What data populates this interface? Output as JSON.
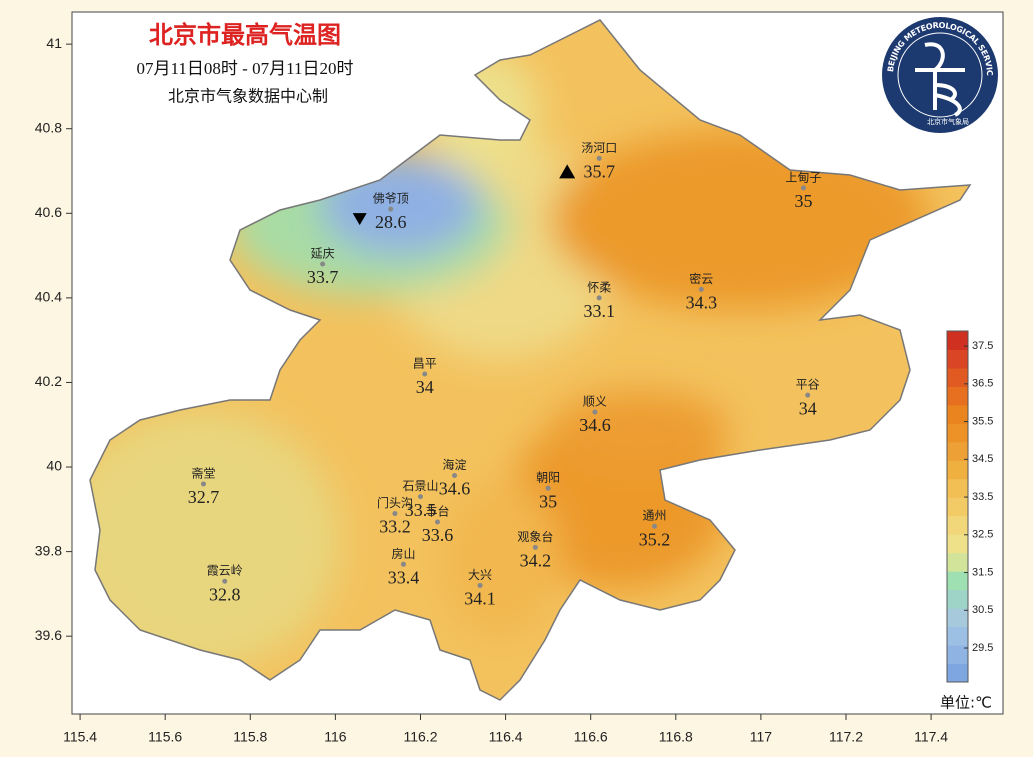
{
  "map": {
    "title": "北京市最高气温图",
    "subtitle": "07月11日08时  -  07月11日20时",
    "producer": "北京市气象数据中心制",
    "xlim": [
      115.381,
      117.569
    ],
    "ylim": [
      39.416,
      41.076
    ],
    "xticks": [
      115.4,
      115.6,
      115.8,
      116,
      116.2,
      116.4,
      116.6,
      116.8,
      117,
      117.2,
      117.4
    ],
    "yticks": [
      39.6,
      39.8,
      40,
      40.2,
      40.4,
      40.6,
      40.8,
      41
    ],
    "stations": [
      {
        "name": "佛爷顶",
        "lon": 116.13,
        "lat": 40.61,
        "value": 28.6,
        "extreme": "min"
      },
      {
        "name": "汤河口",
        "lon": 116.62,
        "lat": 40.73,
        "value": 35.7,
        "extreme": "max"
      },
      {
        "name": "上甸子",
        "lon": 117.1,
        "lat": 40.66,
        "value": 35.0
      },
      {
        "name": "延庆",
        "lon": 115.97,
        "lat": 40.48,
        "value": 33.7
      },
      {
        "name": "怀柔",
        "lon": 116.62,
        "lat": 40.4,
        "value": 33.1
      },
      {
        "name": "密云",
        "lon": 116.86,
        "lat": 40.42,
        "value": 34.3
      },
      {
        "name": "昌平",
        "lon": 116.21,
        "lat": 40.22,
        "value": 34.0
      },
      {
        "name": "平谷",
        "lon": 117.11,
        "lat": 40.17,
        "value": 34.0
      },
      {
        "name": "顺义",
        "lon": 116.61,
        "lat": 40.13,
        "value": 34.6
      },
      {
        "name": "海淀",
        "lon": 116.28,
        "lat": 39.98,
        "value": 34.6
      },
      {
        "name": "斋堂",
        "lon": 115.69,
        "lat": 39.96,
        "value": 32.7
      },
      {
        "name": "石景山",
        "lon": 116.2,
        "lat": 39.93,
        "value": 33.5
      },
      {
        "name": "朝阳",
        "lon": 116.5,
        "lat": 39.95,
        "value": 35.0
      },
      {
        "name": "门头沟",
        "lon": 116.14,
        "lat": 39.89,
        "value": 33.2
      },
      {
        "name": "丰台",
        "lon": 116.24,
        "lat": 39.87,
        "value": 33.6
      },
      {
        "name": "通州",
        "lon": 116.75,
        "lat": 39.86,
        "value": 35.2
      },
      {
        "name": "观象台",
        "lon": 116.47,
        "lat": 39.81,
        "value": 34.2
      },
      {
        "name": "房山",
        "lon": 116.16,
        "lat": 39.77,
        "value": 33.4
      },
      {
        "name": "霞云岭",
        "lon": 115.74,
        "lat": 39.73,
        "value": 32.8
      },
      {
        "name": "大兴",
        "lon": 116.34,
        "lat": 39.72,
        "value": 34.1
      }
    ]
  },
  "legend": {
    "lim": [
      28.6,
      37.9
    ],
    "ticks": [
      29.5,
      30.5,
      31.5,
      32.5,
      33.5,
      34.5,
      35.5,
      36.5,
      37.5
    ],
    "colors": [
      "#7ea6e0",
      "#8fb3e3",
      "#9cbfe4",
      "#a6c9dc",
      "#9ed3c8",
      "#9fe0b2",
      "#d2e49a",
      "#efe08a",
      "#f1d67a",
      "#f3cb66",
      "#f2bf55",
      "#efb040",
      "#eda035",
      "#ec9226",
      "#e9841f",
      "#e67020",
      "#e05a22",
      "#d94525",
      "#cf3020"
    ],
    "unit": "单位:℃"
  },
  "logo": {
    "ring": "BEIJING METEOROLOGICAL SERVICE",
    "name": "北京市气象局"
  }
}
